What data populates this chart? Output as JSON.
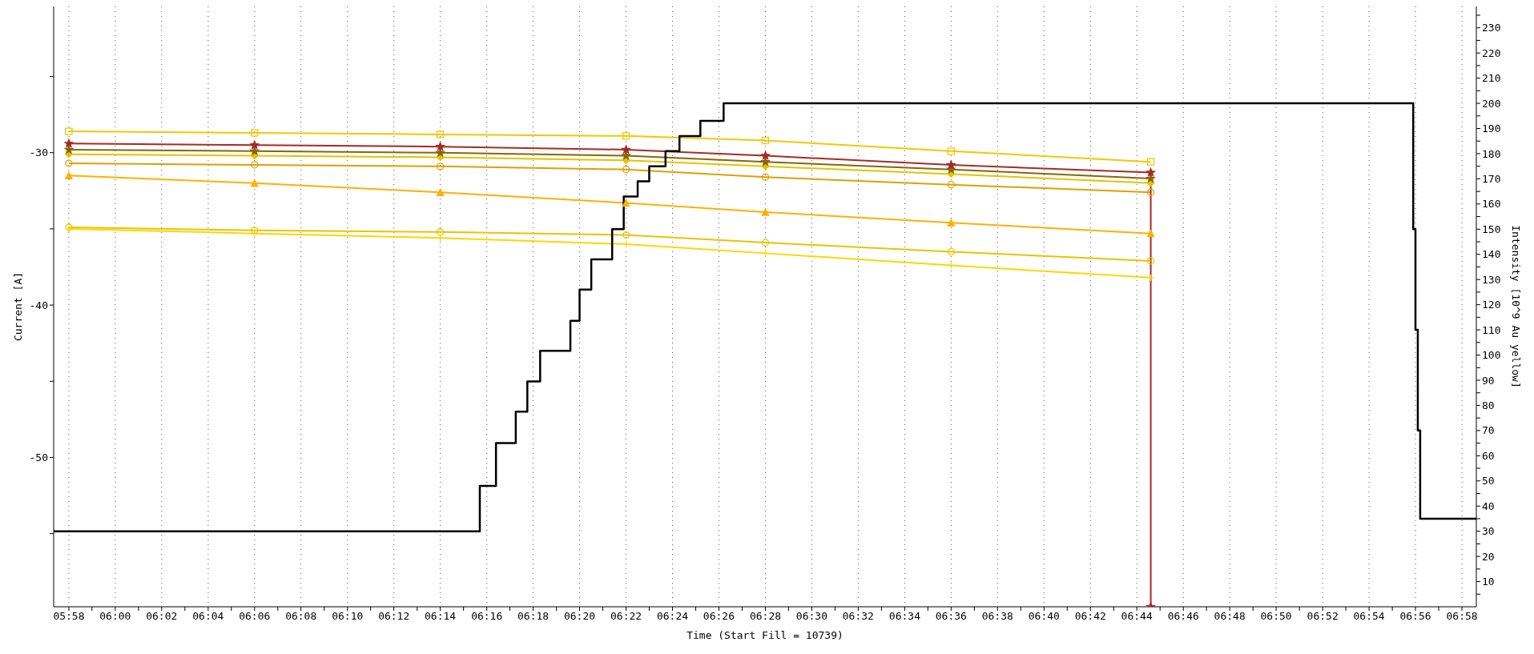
{
  "chart_data": {
    "type": "line",
    "xlabel": "Time (Start Fill = 10739)",
    "ylabel": "Current [A]",
    "y2label": "Intensity [10^9 Au yellow]",
    "xlim": [
      5.9558,
      6.977
    ],
    "ylim": [
      -59.8,
      -20.4
    ],
    "y2lim": [
      0,
      238.5
    ],
    "grid": "x",
    "xticks": [
      {
        "value": 5.9667,
        "label": "05:58"
      },
      {
        "value": 5.9833,
        "label": null
      },
      {
        "value": 6,
        "label": "06:00"
      },
      {
        "value": 6.0167,
        "label": null
      },
      {
        "value": 6.0333,
        "label": "06:02"
      },
      {
        "value": 6.05,
        "label": null
      },
      {
        "value": 6.0667,
        "label": "06:04"
      },
      {
        "value": 6.0833,
        "label": null
      },
      {
        "value": 6.1,
        "label": "06:06"
      },
      {
        "value": 6.1167,
        "label": null
      },
      {
        "value": 6.1333,
        "label": "06:08"
      },
      {
        "value": 6.15,
        "label": null
      },
      {
        "value": 6.1667,
        "label": "06:10"
      },
      {
        "value": 6.1833,
        "label": null
      },
      {
        "value": 6.2,
        "label": "06:12"
      },
      {
        "value": 6.2167,
        "label": null
      },
      {
        "value": 6.2333,
        "label": "06:14"
      },
      {
        "value": 6.25,
        "label": null
      },
      {
        "value": 6.2667,
        "label": "06:16"
      },
      {
        "value": 6.2833,
        "label": null
      },
      {
        "value": 6.3,
        "label": "06:18"
      },
      {
        "value": 6.3167,
        "label": null
      },
      {
        "value": 6.3333,
        "label": "06:20"
      },
      {
        "value": 6.35,
        "label": null
      },
      {
        "value": 6.3667,
        "label": "06:22"
      },
      {
        "value": 6.3833,
        "label": null
      },
      {
        "value": 6.4,
        "label": "06:24"
      },
      {
        "value": 6.4167,
        "label": null
      },
      {
        "value": 6.4333,
        "label": "06:26"
      },
      {
        "value": 6.45,
        "label": null
      },
      {
        "value": 6.4667,
        "label": "06:28"
      },
      {
        "value": 6.4833,
        "label": null
      },
      {
        "value": 6.5,
        "label": "06:30"
      },
      {
        "value": 6.5167,
        "label": null
      },
      {
        "value": 6.5333,
        "label": "06:32"
      },
      {
        "value": 6.55,
        "label": null
      },
      {
        "value": 6.5667,
        "label": "06:34"
      },
      {
        "value": 6.5833,
        "label": null
      },
      {
        "value": 6.6,
        "label": "06:36"
      },
      {
        "value": 6.6167,
        "label": null
      },
      {
        "value": 6.6333,
        "label": "06:38"
      },
      {
        "value": 6.65,
        "label": null
      },
      {
        "value": 6.6667,
        "label": "06:40"
      },
      {
        "value": 6.6833,
        "label": null
      },
      {
        "value": 6.7,
        "label": "06:42"
      },
      {
        "value": 6.7167,
        "label": null
      },
      {
        "value": 6.7333,
        "label": "06:44"
      },
      {
        "value": 6.75,
        "label": null
      },
      {
        "value": 6.7667,
        "label": "06:46"
      },
      {
        "value": 6.7833,
        "label": null
      },
      {
        "value": 6.8,
        "label": "06:48"
      },
      {
        "value": 6.8167,
        "label": null
      },
      {
        "value": 6.8333,
        "label": "06:50"
      },
      {
        "value": 6.85,
        "label": null
      },
      {
        "value": 6.8667,
        "label": "06:52"
      },
      {
        "value": 6.8833,
        "label": null
      },
      {
        "value": 6.9,
        "label": "06:54"
      },
      {
        "value": 6.9167,
        "label": null
      },
      {
        "value": 6.9333,
        "label": "06:56"
      },
      {
        "value": 6.95,
        "label": null
      },
      {
        "value": 6.9667,
        "label": "06:58"
      }
    ],
    "yticks": [
      {
        "value": -25,
        "label": null
      },
      -30,
      {
        "value": -35,
        "label": null
      },
      -40,
      {
        "value": -45,
        "label": null
      },
      -50,
      {
        "value": -55,
        "label": null
      }
    ],
    "y2ticks": [
      {
        "value": 5,
        "label": null
      },
      10,
      {
        "value": 15,
        "label": null
      },
      20,
      {
        "value": 25,
        "label": null
      },
      30,
      {
        "value": 35,
        "label": null
      },
      40,
      {
        "value": 45,
        "label": null
      },
      50,
      {
        "value": 55,
        "label": null
      },
      60,
      {
        "value": 65,
        "label": null
      },
      70,
      {
        "value": 75,
        "label": null
      },
      80,
      {
        "value": 85,
        "label": null
      },
      90,
      {
        "value": 95,
        "label": null
      },
      100,
      {
        "value": 105,
        "label": null
      },
      110,
      {
        "value": 115,
        "label": null
      },
      120,
      {
        "value": 125,
        "label": null
      },
      130,
      {
        "value": 135,
        "label": null
      },
      140,
      {
        "value": 145,
        "label": null
      },
      150,
      {
        "value": 155,
        "label": null
      },
      160,
      {
        "value": 165,
        "label": null
      },
      170,
      {
        "value": 175,
        "label": null
      },
      180,
      {
        "value": 185,
        "label": null
      },
      190,
      {
        "value": 195,
        "label": null
      },
      200,
      {
        "value": 205,
        "label": null
      },
      210,
      {
        "value": 215,
        "label": null
      },
      220,
      {
        "value": 225,
        "label": null
      },
      230,
      {
        "value": 235,
        "label": null
      }
    ],
    "series": [
      {
        "color": "#f7c600",
        "marker": "square",
        "x": [
          5.9667,
          6.1,
          6.2333,
          6.3667,
          6.4667,
          6.6,
          6.7433
        ],
        "values": [
          -28.6,
          -28.7,
          -28.8,
          -28.9,
          -29.2,
          -29.9,
          -30.6
        ]
      },
      {
        "color": "#e0a000",
        "marker": "circle",
        "x": [
          5.9667,
          6.1,
          6.2333,
          6.3667,
          6.4667,
          6.6,
          6.7433
        ],
        "values": [
          -30.7,
          -30.8,
          -30.9,
          -31.1,
          -31.6,
          -32.1,
          -32.6
        ]
      },
      {
        "color": "#e2c400",
        "marker": "diamond",
        "x": [
          5.9667,
          6.1,
          6.2333,
          6.3667,
          6.4667,
          6.6,
          6.7433
        ],
        "values": [
          -30.1,
          -30.2,
          -30.3,
          -30.5,
          -30.9,
          -31.4,
          -32
        ]
      },
      {
        "color": "#8b6508",
        "marker": "star",
        "x": [
          5.9667,
          6.1,
          6.2333,
          6.3667,
          6.4667,
          6.6,
          6.7433
        ],
        "values": [
          -29.8,
          -29.9,
          -30,
          -30.2,
          -30.6,
          -31.1,
          -31.7
        ]
      },
      {
        "color": "#a52a2a",
        "marker": "star",
        "x": [
          5.9667,
          6.1,
          6.2333,
          6.3667,
          6.4667,
          6.6,
          6.7433,
          6.7433
        ],
        "values": [
          -29.4,
          -29.5,
          -29.6,
          -29.8,
          -30.2,
          -30.8,
          -31.3,
          -59.8
        ]
      },
      {
        "color": "#ffb000",
        "marker": "triangle",
        "x": [
          5.9667,
          6.1,
          6.2333,
          6.3667,
          6.4667,
          6.6,
          6.7433
        ],
        "values": [
          -31.5,
          -32,
          -32.6,
          -33.3,
          -33.9,
          -34.6,
          -35.3
        ]
      },
      {
        "color": "#e8c400",
        "marker": "circle",
        "x": [
          5.9667,
          6.1,
          6.2333,
          6.3667,
          6.4667,
          6.6,
          6.7433
        ],
        "values": [
          -34.9,
          -35.1,
          -35.2,
          -35.4,
          -35.9,
          -36.5,
          -37.1
        ]
      },
      {
        "color": "#ffd500",
        "marker": "cross",
        "x": [
          5.9667,
          6.1,
          6.2333,
          6.3667,
          6.4667,
          6.6,
          6.7433
        ],
        "values": [
          -35,
          -35.3,
          -35.6,
          -36,
          -36.6,
          -37.4,
          -38.2
        ]
      },
      {
        "type": "step",
        "axis": "y2",
        "color": "#000000",
        "marker": "none",
        "x": [
          5.9558,
          6.2617,
          6.2733,
          6.2875,
          6.2958,
          6.305,
          6.3267,
          6.3333,
          6.3417,
          6.3567,
          6.365,
          6.375,
          6.3833,
          6.395,
          6.405,
          6.42,
          6.4367,
          6.9317,
          6.9333,
          6.935,
          6.9367,
          6.977
        ],
        "values": [
          30,
          48,
          65,
          77.5,
          89.5,
          101.7,
          113.6,
          126,
          138,
          150,
          163,
          169,
          175,
          181,
          187,
          193,
          200,
          150,
          110,
          70,
          35,
          35
        ]
      }
    ]
  }
}
